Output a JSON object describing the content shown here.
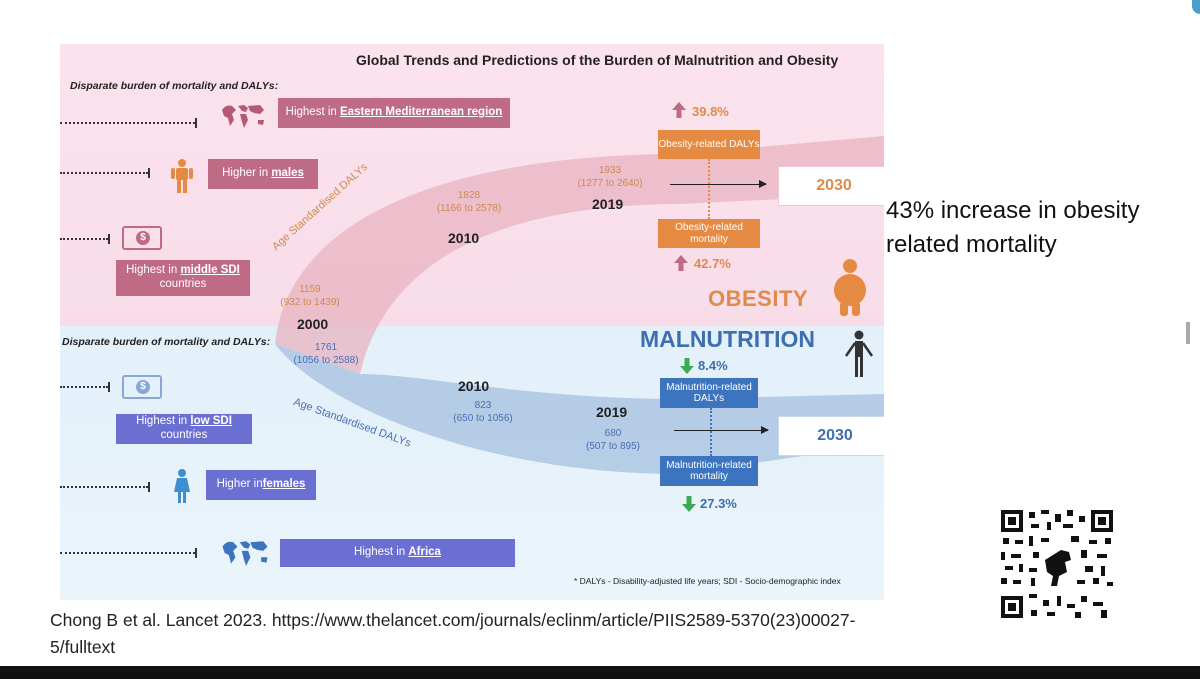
{
  "infographic": {
    "title": "Global Trends and Predictions of the Burden of Malnutrition and Obesity",
    "obesity": {
      "section_heading": "Disparate burden of mortality and DALYs:",
      "region_label_prefix": "Highest in ",
      "region_label_link": "Eastern Mediterranean region",
      "sex_label_prefix": "Higher in ",
      "sex_label_link": "males",
      "sdi_label_prefix": "Highest in ",
      "sdi_label_link": "middle SDI",
      "sdi_label_suffix": "countries",
      "curve_label": "Age Standardised DALYs",
      "points": [
        {
          "year": "2000",
          "value": "1159",
          "ci": "(932 to 1439)"
        },
        {
          "year": "2010",
          "value": "1828",
          "ci": "(1166 to 2578)"
        },
        {
          "year": "2019",
          "value": "1933",
          "ci": "(1277 to 2640)"
        }
      ],
      "dalys_box": "Obesity-related DALYs",
      "dalys_change": "39.8%",
      "mortality_box": "Obesity-related mortality",
      "mortality_change": "42.7%",
      "target_year": "2030",
      "label": "OBESITY"
    },
    "malnutrition": {
      "section_heading": "Disparate burden of mortality and DALYs:",
      "sdi_label_prefix": "Highest in ",
      "sdi_label_link": "low SDI",
      "sdi_label_suffix": "countries",
      "sex_label_prefix": "Higher in ",
      "sex_label_link": "females",
      "region_label_prefix": "Highest in ",
      "region_label_link": "Africa",
      "curve_label": "Age Standardised DALYs",
      "points": [
        {
          "year": "2000",
          "value": "1761",
          "ci": "(1056 to 2588)"
        },
        {
          "year": "2010",
          "value": "823",
          "ci": "(650 to 1056)"
        },
        {
          "year": "2019",
          "value": "680",
          "ci": "(507 to 895)"
        }
      ],
      "dalys_box": "Malnutrition-related DALYs",
      "dalys_change": "8.4%",
      "mortality_box": "Malnutrition-related mortality",
      "mortality_change": "27.3%",
      "target_year": "2030",
      "label": "MALNUTRITION"
    },
    "footnote": "* DALYs - Disability-adjusted life years; SDI - Socio-demographic index"
  },
  "side_note": "43% increase in obesity related mortality",
  "citation": "Chong B et al. Lancet 2023. https://www.thelancet.com/journals/eclinm/article/PIIS2589-5370(23)00027-5/fulltext",
  "colors": {
    "obesity_pink_box": "#c06b86",
    "obesity_orange": "#e58a43",
    "malnutrition_purple_box": "#6b6fd1",
    "malnutrition_blue": "#3d74bf"
  }
}
